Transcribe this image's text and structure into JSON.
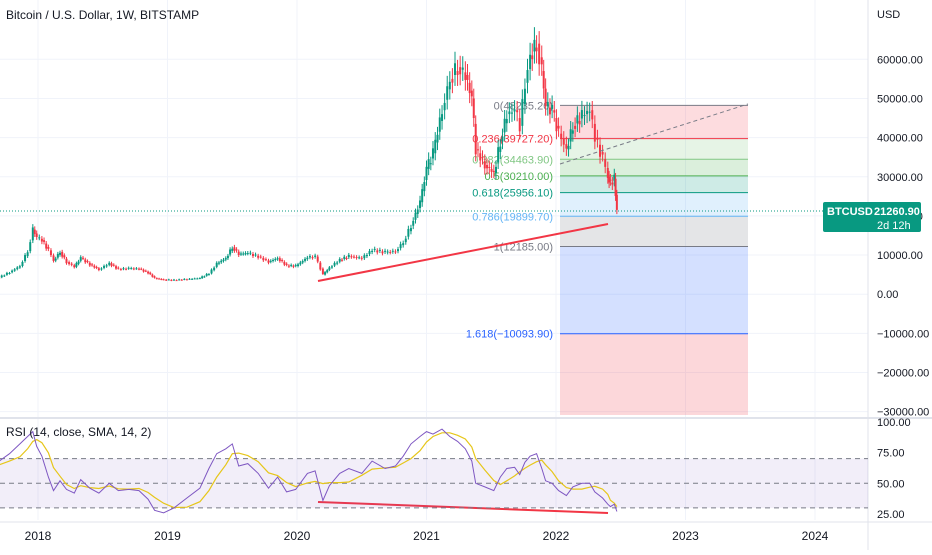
{
  "header": {
    "title": "Bitcoin / U.S. Dollar, 1W, BITSTAMP"
  },
  "price_axis": {
    "unit": "USD",
    "ticks": [
      "60000.00",
      "50000.00",
      "40000.00",
      "30000.00",
      "20000.00",
      "10000.00",
      "0.00",
      "−10000.00",
      "−20000.00",
      "−30000.00"
    ],
    "tick_values": [
      60000,
      50000,
      40000,
      30000,
      20000,
      10000,
      0,
      -10000,
      -20000,
      -30000
    ],
    "last_price_tag": {
      "symbol": "BTCUSD",
      "price": "21260.90",
      "countdown": "2d 12h",
      "value": 21260.9,
      "color": "#089981"
    }
  },
  "time_axis": {
    "labels": [
      "2018",
      "2019",
      "2020",
      "2021",
      "2022",
      "2023",
      "2024"
    ],
    "years": [
      2018,
      2019,
      2020,
      2021,
      2022,
      2023,
      2024
    ]
  },
  "fib": {
    "levels": [
      {
        "text": "0(48235.20)",
        "value": 48235.2,
        "color": "#787b86"
      },
      {
        "text": "0.236(39727.20)",
        "value": 39727.2,
        "color": "#f23645"
      },
      {
        "text": "0.382(34463.90)",
        "value": 34463.9,
        "color": "#81c784"
      },
      {
        "text": "0.5(30210.00)",
        "value": 30210.0,
        "color": "#4caf50"
      },
      {
        "text": "0.618(25956.10)",
        "value": 25956.1,
        "color": "#089981"
      },
      {
        "text": "0.786(19899.70)",
        "value": 19899.7,
        "color": "#64b5f6"
      },
      {
        "text": "1(12185.00)",
        "value": 12185.0,
        "color": "#787b86"
      },
      {
        "text": "1.618(−10093.90)",
        "value": -10093.9,
        "color": "#2962ff"
      }
    ],
    "fills": [
      "#f7525f",
      "#81c784",
      "#4caf50",
      "#089981",
      "#64b5f6",
      "#787b86",
      "#2962ff",
      "#f23645"
    ]
  },
  "rsi": {
    "title": "RSI (14, close, SMA, 14, 2)",
    "ticks": [
      "100.00",
      "75.00",
      "50.00",
      "25.00"
    ],
    "tick_values": [
      100,
      75,
      50,
      25
    ],
    "colors": {
      "rsi": "#7e57c2",
      "ma": "#e6c619",
      "band": "#7e57c2"
    }
  },
  "chart_data": {
    "type": "candlestick",
    "symbol": "BTCUSD",
    "interval": "1W",
    "exchange": "BITSTAMP",
    "x_range": [
      2017.55,
      2024.3
    ],
    "y_range": [
      -32000,
      73000
    ],
    "series": [
      {
        "name": "BTCUSD",
        "points": [
          [
            2017.62,
            4000
          ],
          [
            2017.7,
            4300
          ],
          [
            2017.78,
            5600
          ],
          [
            2017.86,
            7200
          ],
          [
            2017.92,
            11000
          ],
          [
            2017.96,
            16500
          ],
          [
            2017.99,
            14500
          ],
          [
            2018.03,
            13800
          ],
          [
            2018.08,
            11200
          ],
          [
            2018.12,
            8600
          ],
          [
            2018.17,
            10800
          ],
          [
            2018.22,
            8200
          ],
          [
            2018.28,
            7000
          ],
          [
            2018.33,
            9300
          ],
          [
            2018.4,
            7600
          ],
          [
            2018.47,
            6300
          ],
          [
            2018.55,
            7900
          ],
          [
            2018.62,
            6400
          ],
          [
            2018.7,
            6600
          ],
          [
            2018.78,
            6500
          ],
          [
            2018.85,
            5500
          ],
          [
            2018.9,
            4100
          ],
          [
            2018.97,
            3700
          ],
          [
            2019.05,
            3600
          ],
          [
            2019.15,
            3850
          ],
          [
            2019.25,
            4100
          ],
          [
            2019.32,
            5300
          ],
          [
            2019.38,
            7800
          ],
          [
            2019.45,
            9200
          ],
          [
            2019.5,
            12000
          ],
          [
            2019.55,
            10300
          ],
          [
            2019.62,
            10500
          ],
          [
            2019.7,
            9600
          ],
          [
            2019.78,
            8300
          ],
          [
            2019.85,
            9200
          ],
          [
            2019.92,
            7300
          ],
          [
            2019.99,
            7200
          ],
          [
            2020.08,
            9400
          ],
          [
            2020.14,
            9600
          ],
          [
            2020.2,
            5000
          ],
          [
            2020.25,
            6800
          ],
          [
            2020.33,
            8800
          ],
          [
            2020.4,
            9700
          ],
          [
            2020.5,
            9200
          ],
          [
            2020.58,
            11300
          ],
          [
            2020.68,
            10700
          ],
          [
            2020.76,
            11000
          ],
          [
            2020.82,
            13300
          ],
          [
            2020.88,
            17500
          ],
          [
            2020.95,
            23500
          ],
          [
            2021.0,
            32000
          ],
          [
            2021.05,
            36000
          ],
          [
            2021.12,
            47000
          ],
          [
            2021.18,
            55000
          ],
          [
            2021.24,
            58000
          ],
          [
            2021.3,
            56000
          ],
          [
            2021.35,
            50000
          ],
          [
            2021.38,
            37000
          ],
          [
            2021.45,
            33000
          ],
          [
            2021.52,
            31000
          ],
          [
            2021.57,
            39000
          ],
          [
            2021.62,
            46000
          ],
          [
            2021.68,
            47000
          ],
          [
            2021.72,
            43000
          ],
          [
            2021.76,
            54000
          ],
          [
            2021.8,
            61000
          ],
          [
            2021.85,
            64000
          ],
          [
            2021.89,
            57000
          ],
          [
            2021.92,
            48000
          ],
          [
            2021.97,
            47000
          ],
          [
            2022.02,
            41000
          ],
          [
            2022.08,
            37000
          ],
          [
            2022.13,
            43000
          ],
          [
            2022.2,
            45500
          ],
          [
            2022.26,
            47000
          ],
          [
            2022.3,
            40000
          ],
          [
            2022.36,
            34500
          ],
          [
            2022.4,
            30000
          ],
          [
            2022.42,
            28500
          ],
          [
            2022.45,
            29500
          ],
          [
            2022.47,
            21260.9
          ]
        ]
      }
    ],
    "rsi_series": [
      [
        2017.62,
        62
      ],
      [
        2017.7,
        68
      ],
      [
        2017.78,
        74
      ],
      [
        2017.86,
        82
      ],
      [
        2017.92,
        88
      ],
      [
        2017.96,
        92
      ],
      [
        2017.99,
        80
      ],
      [
        2018.03,
        72
      ],
      [
        2018.08,
        55
      ],
      [
        2018.12,
        44
      ],
      [
        2018.17,
        52
      ],
      [
        2018.22,
        45
      ],
      [
        2018.28,
        42
      ],
      [
        2018.33,
        53
      ],
      [
        2018.4,
        46
      ],
      [
        2018.47,
        42
      ],
      [
        2018.55,
        50
      ],
      [
        2018.62,
        44
      ],
      [
        2018.7,
        45
      ],
      [
        2018.78,
        44
      ],
      [
        2018.85,
        37
      ],
      [
        2018.9,
        28
      ],
      [
        2018.97,
        26
      ],
      [
        2019.05,
        30
      ],
      [
        2019.15,
        38
      ],
      [
        2019.25,
        46
      ],
      [
        2019.32,
        62
      ],
      [
        2019.38,
        74
      ],
      [
        2019.45,
        78
      ],
      [
        2019.5,
        82
      ],
      [
        2019.55,
        64
      ],
      [
        2019.62,
        66
      ],
      [
        2019.7,
        58
      ],
      [
        2019.78,
        46
      ],
      [
        2019.85,
        55
      ],
      [
        2019.92,
        43
      ],
      [
        2019.99,
        45
      ],
      [
        2020.08,
        58
      ],
      [
        2020.14,
        60
      ],
      [
        2020.2,
        36
      ],
      [
        2020.25,
        48
      ],
      [
        2020.33,
        58
      ],
      [
        2020.4,
        62
      ],
      [
        2020.5,
        58
      ],
      [
        2020.58,
        68
      ],
      [
        2020.68,
        62
      ],
      [
        2020.76,
        64
      ],
      [
        2020.82,
        72
      ],
      [
        2020.88,
        82
      ],
      [
        2020.95,
        88
      ],
      [
        2021.0,
        92
      ],
      [
        2021.05,
        90
      ],
      [
        2021.12,
        94
      ],
      [
        2021.18,
        88
      ],
      [
        2021.24,
        84
      ],
      [
        2021.3,
        78
      ],
      [
        2021.35,
        68
      ],
      [
        2021.38,
        50
      ],
      [
        2021.45,
        47
      ],
      [
        2021.52,
        44
      ],
      [
        2021.57,
        55
      ],
      [
        2021.62,
        62
      ],
      [
        2021.68,
        63
      ],
      [
        2021.72,
        57
      ],
      [
        2021.76,
        67
      ],
      [
        2021.8,
        72
      ],
      [
        2021.85,
        74
      ],
      [
        2021.89,
        62
      ],
      [
        2021.92,
        52
      ],
      [
        2021.97,
        50
      ],
      [
        2022.02,
        44
      ],
      [
        2022.08,
        40
      ],
      [
        2022.13,
        47
      ],
      [
        2022.2,
        50
      ],
      [
        2022.26,
        50
      ],
      [
        2022.3,
        43
      ],
      [
        2022.36,
        38
      ],
      [
        2022.4,
        33
      ],
      [
        2022.42,
        31
      ],
      [
        2022.45,
        33
      ],
      [
        2022.47,
        27
      ]
    ]
  }
}
